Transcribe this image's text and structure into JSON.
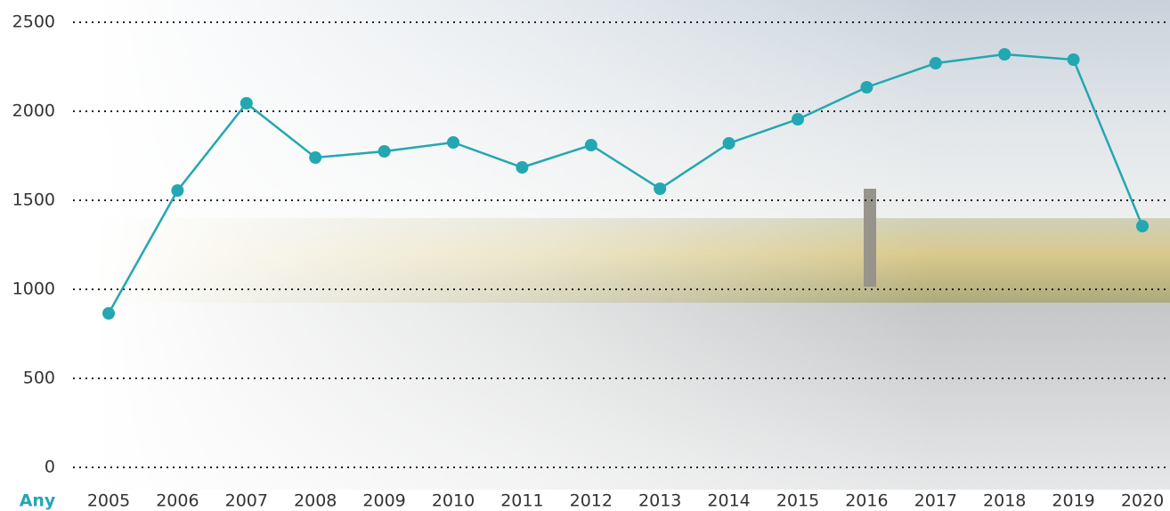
{
  "chart_data": {
    "type": "line",
    "x_label": "Any",
    "categories": [
      "2005",
      "2006",
      "2007",
      "2008",
      "2009",
      "2010",
      "2011",
      "2012",
      "2013",
      "2014",
      "2015",
      "2016",
      "2017",
      "2018",
      "2019",
      "2020"
    ],
    "series": [
      {
        "color": "#23a7b2",
        "values": [
          865,
          1555,
          2045,
          1740,
          1775,
          1825,
          1685,
          1810,
          1565,
          1820,
          1955,
          2135,
          2270,
          2320,
          2290,
          1355
        ]
      }
    ],
    "ylim": [
      0,
      2500
    ],
    "yticks": [
      0,
      500,
      1000,
      1500,
      2000,
      2500
    ],
    "grid": true
  }
}
